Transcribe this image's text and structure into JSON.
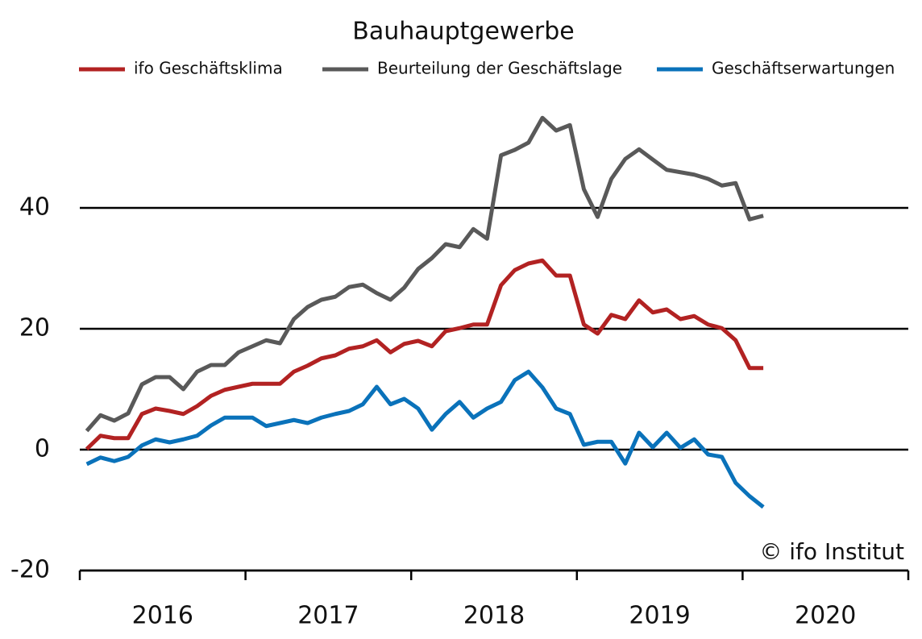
{
  "chart_data": {
    "type": "line",
    "title": "Bauhauptgewerbe",
    "annotation": "© ifo Institut",
    "x": [
      2016.042,
      2016.125,
      2016.208,
      2016.292,
      2016.375,
      2016.458,
      2016.542,
      2016.625,
      2016.708,
      2016.792,
      2016.875,
      2016.958,
      2017.042,
      2017.125,
      2017.208,
      2017.292,
      2017.375,
      2017.458,
      2017.542,
      2017.625,
      2017.708,
      2017.792,
      2017.875,
      2017.958,
      2018.042,
      2018.125,
      2018.208,
      2018.292,
      2018.375,
      2018.458,
      2018.542,
      2018.625,
      2018.708,
      2018.792,
      2018.875,
      2018.958,
      2019.042,
      2019.125,
      2019.208,
      2019.292,
      2019.375,
      2019.458,
      2019.542,
      2019.625,
      2019.708,
      2019.792,
      2019.875,
      2019.958,
      2020.042,
      2020.125
    ],
    "series": [
      {
        "name": "ifo Geschäftsklima",
        "color": "#b22222",
        "values": [
          0.1,
          2.3,
          1.9,
          1.9,
          5.9,
          6.8,
          6.4,
          5.9,
          7.2,
          8.9,
          9.9,
          10.4,
          10.9,
          10.9,
          10.9,
          12.9,
          13.9,
          15.1,
          15.6,
          16.7,
          17.1,
          18.1,
          16.1,
          17.5,
          18.0,
          17.1,
          19.6,
          20.1,
          20.7,
          20.7,
          27.2,
          29.7,
          30.8,
          31.3,
          28.8,
          28.8,
          20.7,
          19.2,
          22.3,
          21.6,
          24.7,
          22.7,
          23.2,
          21.6,
          22.1,
          20.7,
          20.1,
          18.1,
          13.5,
          13.5
        ]
      },
      {
        "name": "Beurteilung der Geschäftslage",
        "color": "#595959",
        "values": [
          3.1,
          5.7,
          4.8,
          6.0,
          10.8,
          12.0,
          12.0,
          10.0,
          12.9,
          14.0,
          14.0,
          16.1,
          17.1,
          18.1,
          17.6,
          21.6,
          23.6,
          24.8,
          25.3,
          26.9,
          27.3,
          25.9,
          24.8,
          26.8,
          29.9,
          31.7,
          34.0,
          33.5,
          36.5,
          34.9,
          48.7,
          49.6,
          50.8,
          54.9,
          52.8,
          53.7,
          43.1,
          38.5,
          44.8,
          48.1,
          49.7,
          48.0,
          46.3,
          45.9,
          45.5,
          44.8,
          43.7,
          44.1,
          38.1,
          38.7
        ]
      },
      {
        "name": "Geschäftserwartungen",
        "color": "#0a72ba",
        "values": [
          -2.4,
          -1.3,
          -1.9,
          -1.2,
          0.7,
          1.7,
          1.2,
          1.7,
          2.3,
          4.0,
          5.3,
          5.3,
          5.3,
          3.9,
          4.4,
          4.9,
          4.4,
          5.3,
          5.9,
          6.4,
          7.5,
          10.4,
          7.5,
          8.4,
          6.8,
          3.3,
          5.9,
          7.9,
          5.3,
          6.8,
          7.9,
          11.5,
          12.9,
          10.3,
          6.8,
          5.9,
          0.8,
          1.3,
          1.3,
          -2.3,
          2.8,
          0.4,
          2.8,
          0.3,
          1.7,
          -0.8,
          -1.2,
          -5.5,
          -7.7,
          -9.5
        ]
      }
    ],
    "xlim": [
      2016,
      2021
    ],
    "xticks": [
      2016,
      2017,
      2018,
      2019,
      2020,
      2021
    ],
    "xtick_labels": [
      {
        "value": 2016.5,
        "label": "2016"
      },
      {
        "value": 2017.5,
        "label": "2017"
      },
      {
        "value": 2018.5,
        "label": "2018"
      },
      {
        "value": 2019.5,
        "label": "2019"
      },
      {
        "value": 2020.5,
        "label": "2020"
      }
    ],
    "ylim": [
      -20,
      60
    ],
    "yticks": [
      -20,
      0,
      20,
      40
    ],
    "grid": true,
    "legend": "top"
  }
}
